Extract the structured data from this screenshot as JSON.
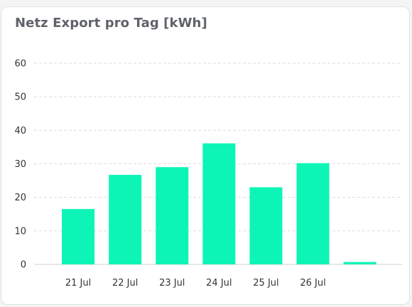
{
  "card": {
    "title": "Netz Export pro Tag [kWh]"
  },
  "colors": {
    "bar": "#0cf5b6",
    "grid": "#dcdcdc",
    "axis": "#cfcfcf",
    "text": "#333333"
  },
  "chart_data": {
    "type": "bar",
    "title": "Netz Export pro Tag [kWh]",
    "categories": [
      "21 Jul",
      "22 Jul",
      "23 Jul",
      "24 Jul",
      "25 Jul",
      "26 Jul",
      ""
    ],
    "values": [
      16.5,
      26.7,
      29.0,
      36.1,
      23.0,
      30.2,
      0.7
    ],
    "ylim": [
      0,
      60
    ],
    "yticks": [
      0,
      10,
      20,
      30,
      40,
      50,
      60
    ],
    "grid": true,
    "legend": "none"
  }
}
